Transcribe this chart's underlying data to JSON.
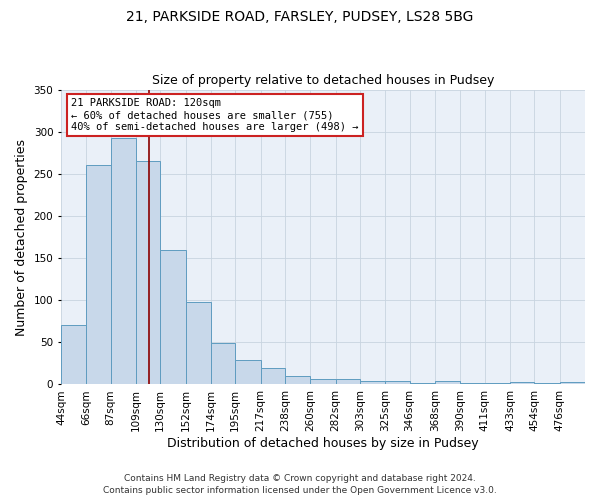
{
  "title": "21, PARKSIDE ROAD, FARSLEY, PUDSEY, LS28 5BG",
  "subtitle": "Size of property relative to detached houses in Pudsey",
  "xlabel": "Distribution of detached houses by size in Pudsey",
  "ylabel": "Number of detached properties",
  "bar_labels": [
    "44sqm",
    "66sqm",
    "87sqm",
    "109sqm",
    "130sqm",
    "152sqm",
    "174sqm",
    "195sqm",
    "217sqm",
    "238sqm",
    "260sqm",
    "282sqm",
    "303sqm",
    "325sqm",
    "346sqm",
    "368sqm",
    "390sqm",
    "411sqm",
    "433sqm",
    "454sqm",
    "476sqm"
  ],
  "bar_values": [
    70,
    260,
    293,
    265,
    160,
    98,
    49,
    29,
    19,
    10,
    7,
    7,
    4,
    4,
    2,
    4,
    2,
    2,
    3,
    2,
    3
  ],
  "bar_color": "#c8d8ea",
  "bar_edge_color": "#5f9cc0",
  "ylim": [
    0,
    350
  ],
  "yticks": [
    0,
    50,
    100,
    150,
    200,
    250,
    300,
    350
  ],
  "property_line_x": 120,
  "property_line_color": "#8b0000",
  "annotation_title": "21 PARKSIDE ROAD: 120sqm",
  "annotation_line1": "← 60% of detached houses are smaller (755)",
  "annotation_line2": "40% of semi-detached houses are larger (498) →",
  "annotation_box_color": "#ffffff",
  "annotation_box_edge": "#cc2222",
  "footer1": "Contains HM Land Registry data © Crown copyright and database right 2024.",
  "footer2": "Contains public sector information licensed under the Open Government Licence v3.0.",
  "bin_edges": [
    44,
    66,
    87,
    109,
    130,
    152,
    174,
    195,
    217,
    238,
    260,
    282,
    303,
    325,
    346,
    368,
    390,
    411,
    433,
    454,
    476,
    498
  ],
  "background_color": "#ffffff",
  "plot_bg_color": "#eaf0f8",
  "title_fontsize": 10,
  "subtitle_fontsize": 9,
  "axis_label_fontsize": 9,
  "tick_fontsize": 7.5,
  "footer_fontsize": 6.5
}
